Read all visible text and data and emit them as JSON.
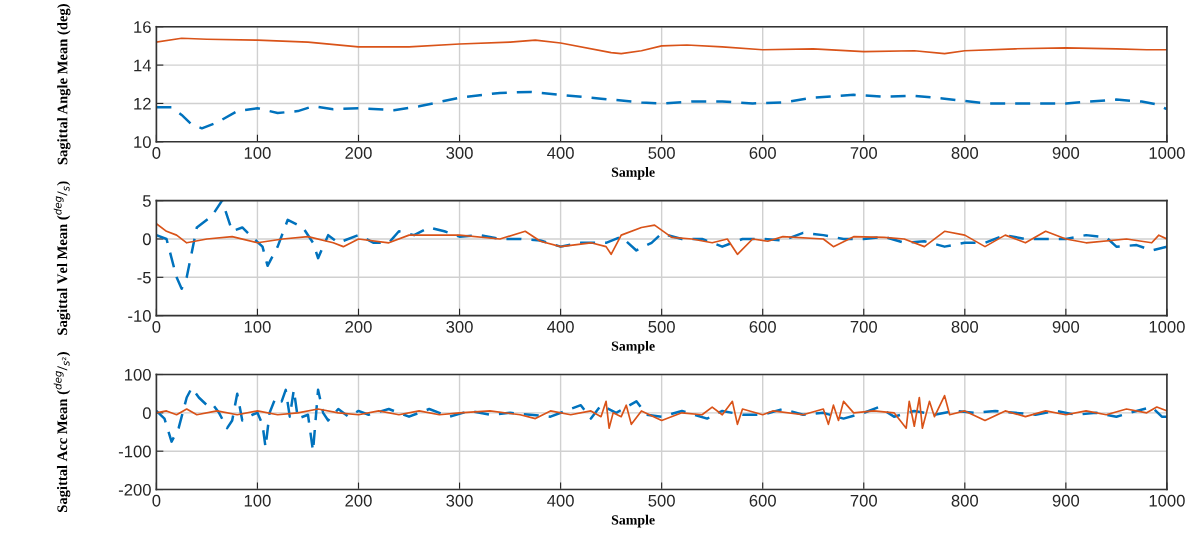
{
  "chart_data": [
    {
      "type": "line",
      "xlabel": "Sample",
      "ylabel": "Sagittal Angle Mean (deg)",
      "xlim": [
        0,
        1000
      ],
      "ylim": [
        10,
        16
      ],
      "xticks": [
        0,
        100,
        200,
        300,
        400,
        500,
        600,
        700,
        800,
        900,
        1000
      ],
      "yticks": [
        10,
        12,
        14,
        16
      ],
      "grid": true,
      "series": [
        {
          "color": "#d95319",
          "line_style": "solid",
          "x": [
            0,
            25,
            50,
            100,
            150,
            200,
            250,
            300,
            350,
            375,
            400,
            450,
            460,
            480,
            500,
            525,
            560,
            600,
            650,
            700,
            750,
            780,
            800,
            850,
            900,
            950,
            980,
            1000
          ],
          "values": [
            15.2,
            15.4,
            15.35,
            15.3,
            15.2,
            14.95,
            14.95,
            15.1,
            15.2,
            15.3,
            15.15,
            14.65,
            14.6,
            14.75,
            15.0,
            15.05,
            14.95,
            14.8,
            14.85,
            14.7,
            14.75,
            14.6,
            14.75,
            14.85,
            14.9,
            14.85,
            14.8,
            14.8
          ]
        },
        {
          "color": "#0072bd",
          "line_style": "dashed",
          "x": [
            0,
            15,
            25,
            35,
            45,
            60,
            80,
            100,
            120,
            140,
            155,
            175,
            200,
            235,
            260,
            300,
            340,
            370,
            400,
            440,
            480,
            500,
            530,
            560,
            590,
            620,
            650,
            690,
            720,
            750,
            780,
            820,
            850,
            900,
            950,
            975,
            990,
            1000
          ],
          "values": [
            11.8,
            11.8,
            11.4,
            10.9,
            10.7,
            11.0,
            11.6,
            11.75,
            11.5,
            11.6,
            11.85,
            11.7,
            11.75,
            11.65,
            11.85,
            12.3,
            12.55,
            12.6,
            12.45,
            12.25,
            12.05,
            12.0,
            12.1,
            12.1,
            12.0,
            12.05,
            12.3,
            12.45,
            12.35,
            12.4,
            12.25,
            12.0,
            12.0,
            12.0,
            12.2,
            12.1,
            11.95,
            11.7
          ]
        }
      ]
    },
    {
      "type": "line",
      "xlabel": "Sample",
      "ylabel": "Sagittal Vel Mean ($^{deg}$/$_{s}$)",
      "xlim": [
        0,
        1000
      ],
      "ylim": [
        -10,
        5
      ],
      "xticks": [
        0,
        100,
        200,
        300,
        400,
        500,
        600,
        700,
        800,
        900,
        1000
      ],
      "yticks": [
        -10,
        -5,
        0,
        5
      ],
      "grid": true,
      "series": [
        {
          "color": "#0072bd",
          "line_style": "dashed",
          "x": [
            0,
            10,
            20,
            25,
            30,
            40,
            55,
            65,
            75,
            85,
            95,
            105,
            110,
            120,
            130,
            145,
            155,
            160,
            170,
            180,
            200,
            215,
            230,
            240,
            255,
            270,
            285,
            300,
            320,
            340,
            360,
            380,
            400,
            420,
            445,
            460,
            475,
            490,
            500,
            520,
            540,
            560,
            580,
            600,
            620,
            640,
            660,
            680,
            700,
            720,
            740,
            760,
            780,
            800,
            820,
            840,
            860,
            880,
            900,
            920,
            940,
            950,
            970,
            985,
            1000
          ],
          "values": [
            0.5,
            0,
            -5,
            -6.5,
            -5,
            1.5,
            3,
            5,
            1,
            1.5,
            0.2,
            -1,
            -3.5,
            -1,
            2.5,
            1.5,
            -0.5,
            -2.5,
            0.5,
            -0.5,
            0.5,
            -0.5,
            -0.5,
            1,
            0.5,
            1.5,
            1,
            0.3,
            0.5,
            0,
            0,
            -0.2,
            -1,
            -0.5,
            -0.5,
            0.3,
            -1.5,
            -0.5,
            0.7,
            0,
            0,
            -1,
            0,
            0,
            -0.2,
            0.8,
            0.5,
            0,
            0,
            0.3,
            -0.5,
            -0.3,
            -1,
            -0.5,
            -0.5,
            0.5,
            0,
            0,
            0,
            0.5,
            0.2,
            -1,
            -0.8,
            -1.5,
            -1
          ]
        },
        {
          "color": "#d95319",
          "line_style": "solid",
          "x": [
            0,
            10,
            20,
            30,
            50,
            75,
            100,
            125,
            150,
            175,
            185,
            200,
            230,
            250,
            280,
            300,
            340,
            365,
            380,
            400,
            430,
            445,
            450,
            460,
            480,
            493,
            510,
            530,
            550,
            565,
            575,
            590,
            605,
            620,
            660,
            670,
            690,
            720,
            740,
            760,
            780,
            800,
            820,
            840,
            860,
            880,
            900,
            920,
            960,
            985,
            992,
            1000
          ],
          "values": [
            2,
            1,
            0.5,
            -0.5,
            0,
            0.3,
            -0.5,
            0,
            0.3,
            -0.5,
            -1,
            0,
            -0.5,
            0.5,
            0.5,
            0.5,
            0,
            1,
            -0.3,
            -1,
            -0.5,
            -1,
            -2,
            0.5,
            1.5,
            1.8,
            0.2,
            0,
            -0.5,
            0,
            -2,
            0,
            -0.3,
            0.3,
            0,
            -1,
            0.3,
            0.2,
            0,
            -1,
            1,
            0.5,
            -1,
            0.5,
            -0.5,
            1,
            0,
            -0.5,
            0,
            -0.5,
            0.5,
            0
          ]
        }
      ]
    },
    {
      "type": "line",
      "xlabel": "Sample",
      "ylabel": "Sagittal Acc Mean ($^{deg}$/$_{s²}$)",
      "xlim": [
        0,
        1000
      ],
      "ylim": [
        -200,
        100
      ],
      "xticks": [
        0,
        100,
        200,
        300,
        400,
        500,
        600,
        700,
        800,
        900,
        1000
      ],
      "yticks": [
        -200,
        -100,
        0,
        100
      ],
      "grid": true,
      "series": [
        {
          "color": "#0072bd",
          "line_style": "dashed",
          "x": [
            0,
            8,
            15,
            22,
            30,
            35,
            42,
            50,
            55,
            62,
            70,
            75,
            80,
            85,
            95,
            100,
            105,
            108,
            112,
            118,
            124,
            128,
            132,
            136,
            140,
            150,
            155,
            160,
            165,
            170,
            180,
            190,
            200,
            210,
            230,
            250,
            270,
            290,
            310,
            330,
            350,
            370,
            390,
            410,
            420,
            430,
            440,
            455,
            465,
            475,
            485,
            500,
            520,
            545,
            560,
            580,
            600,
            620,
            640,
            660,
            680,
            700,
            715,
            730,
            750,
            770,
            790,
            810,
            830,
            850,
            870,
            890,
            910,
            930,
            950,
            970,
            985,
            995,
            1000
          ],
          "values": [
            5,
            -15,
            -75,
            -40,
            40,
            65,
            40,
            20,
            25,
            0,
            -40,
            -20,
            50,
            -20,
            -5,
            0,
            -30,
            -90,
            0,
            40,
            30,
            60,
            -10,
            60,
            -15,
            -5,
            -100,
            60,
            0,
            -20,
            10,
            -10,
            5,
            -5,
            10,
            -10,
            10,
            -10,
            5,
            -5,
            0,
            -5,
            -10,
            10,
            20,
            -15,
            20,
            0,
            15,
            30,
            -5,
            -10,
            5,
            -15,
            5,
            -5,
            -5,
            10,
            -5,
            0,
            -15,
            0,
            15,
            -10,
            5,
            -5,
            5,
            0,
            5,
            0,
            -5,
            5,
            -5,
            0,
            -10,
            5,
            15,
            -10,
            -10
          ]
        },
        {
          "color": "#d95319",
          "line_style": "solid",
          "x": [
            0,
            10,
            20,
            30,
            40,
            60,
            80,
            100,
            120,
            140,
            160,
            180,
            200,
            220,
            240,
            260,
            280,
            300,
            330,
            360,
            375,
            390,
            410,
            430,
            440,
            445,
            448,
            452,
            460,
            465,
            470,
            480,
            500,
            520,
            540,
            550,
            560,
            570,
            575,
            580,
            600,
            610,
            640,
            660,
            665,
            670,
            675,
            680,
            690,
            710,
            730,
            742,
            745,
            750,
            755,
            758,
            765,
            770,
            780,
            785,
            800,
            820,
            840,
            860,
            880,
            900,
            920,
            940,
            960,
            980,
            990,
            1000
          ],
          "values": [
            0,
            5,
            -5,
            10,
            -5,
            5,
            -5,
            5,
            -5,
            0,
            10,
            0,
            -5,
            5,
            -5,
            5,
            -5,
            0,
            5,
            -5,
            -15,
            5,
            -5,
            5,
            -10,
            30,
            -40,
            0,
            -10,
            20,
            -30,
            5,
            -20,
            0,
            -5,
            15,
            -5,
            30,
            -30,
            10,
            -5,
            5,
            -5,
            10,
            -30,
            20,
            -20,
            30,
            0,
            5,
            0,
            -40,
            30,
            -35,
            40,
            -40,
            30,
            -10,
            45,
            -5,
            5,
            -20,
            5,
            -10,
            5,
            -5,
            5,
            -5,
            10,
            0,
            15,
            5
          ]
        }
      ]
    }
  ]
}
